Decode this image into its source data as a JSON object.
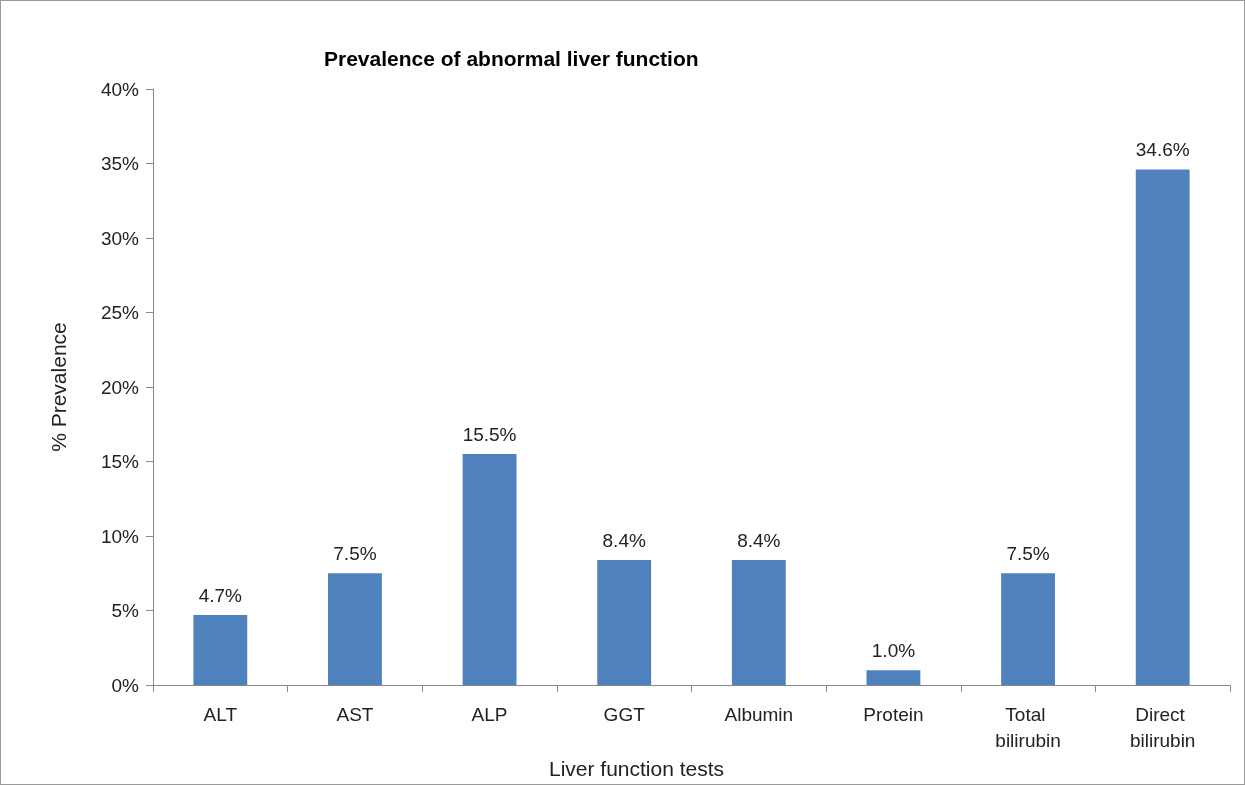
{
  "chart_data": {
    "type": "bar",
    "title": "Prevalence of abnormal liver function",
    "xlabel": "Liver function tests",
    "ylabel": "% Prevalence",
    "categories": [
      "ALT",
      "AST",
      "ALP",
      "GGT",
      "Albumin",
      "Protein",
      "Total bilirubin",
      "Direct bilirubin"
    ],
    "values": [
      4.7,
      7.5,
      15.5,
      8.4,
      8.4,
      1.0,
      7.5,
      34.6
    ],
    "value_labels": [
      "4.7%",
      "7.5%",
      "15.5%",
      "8.4%",
      "8.4%",
      "1.0%",
      "7.5%",
      "34.6%"
    ],
    "color": "#4f81bd",
    "ylim": [
      0,
      40
    ],
    "yticks": [
      {
        "value": 0,
        "label": "0%"
      },
      {
        "value": 5,
        "label": "5%"
      },
      {
        "value": 10,
        "label": "10%"
      },
      {
        "value": 15,
        "label": "15%"
      },
      {
        "value": 20,
        "label": "20%"
      },
      {
        "value": 25,
        "label": "25%"
      },
      {
        "value": 30,
        "label": "30%"
      },
      {
        "value": 35,
        "label": "35%"
      },
      {
        "value": 40,
        "label": "40%"
      }
    ],
    "grid": false
  }
}
